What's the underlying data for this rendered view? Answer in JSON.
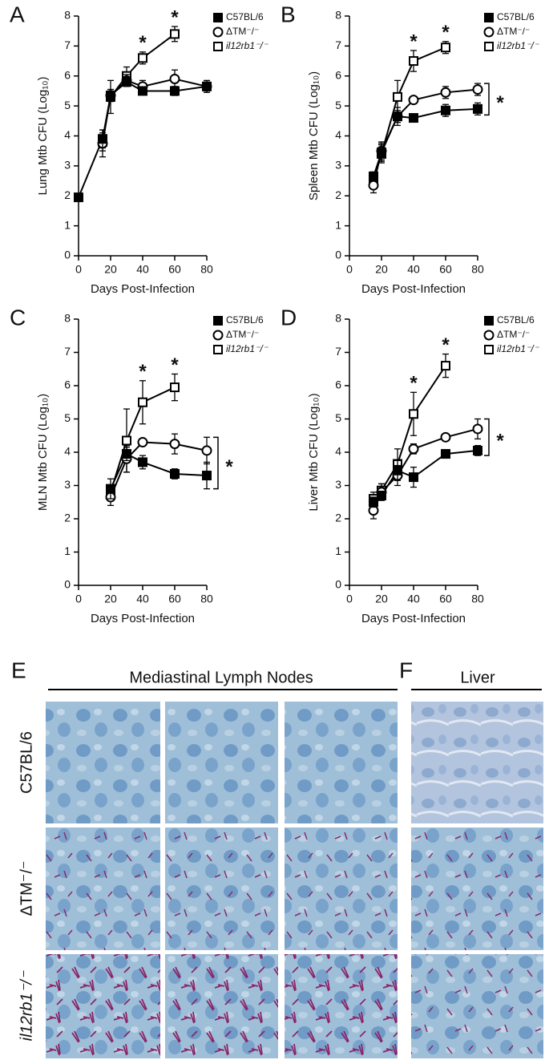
{
  "chart_data": [
    {
      "type": "line",
      "label": "A",
      "y_label": "Lung Mtb CFU (Log₁₀)",
      "x_label": "Days Post-Infection",
      "x": [
        0,
        15,
        20,
        30,
        40,
        60,
        80
      ],
      "xlim": [
        0,
        80
      ],
      "xticks": [
        0,
        20,
        40,
        60,
        80
      ],
      "ylim": [
        0,
        8
      ],
      "yticks": [
        0,
        1,
        2,
        3,
        4,
        5,
        6,
        7,
        8
      ],
      "legend": "upper right",
      "series": [
        {
          "name": "C57BL/6",
          "color": "#000000",
          "marker": "square",
          "filled": true,
          "italic": false,
          "values": [
            1.95,
            3.9,
            5.35,
            5.8,
            5.5,
            5.5,
            5.65
          ],
          "errors": [
            0.05,
            0.3,
            0.2,
            0.15,
            0.1,
            0.15,
            0.15
          ]
        },
        {
          "name": "ΔTM⁻/⁻",
          "color": "#000000",
          "marker": "circle",
          "filled": false,
          "italic": false,
          "values": [
            null,
            3.75,
            5.35,
            5.85,
            5.65,
            5.9,
            5.65
          ],
          "errors": [
            null,
            0.45,
            0.2,
            0.2,
            0.2,
            0.3,
            0.2
          ]
        },
        {
          "name": "il12rb1⁻/⁻",
          "color": "#000000",
          "marker": "square",
          "filled": false,
          "italic": true,
          "values": [
            null,
            3.8,
            5.3,
            6.0,
            6.6,
            7.4,
            null
          ],
          "errors": [
            null,
            0.3,
            0.55,
            0.3,
            0.2,
            0.25,
            null
          ]
        }
      ],
      "annotations": [
        {
          "text": "*",
          "x": 40
        },
        {
          "text": "*",
          "x": 60
        }
      ]
    },
    {
      "type": "line",
      "label": "B",
      "y_label": "Spleen Mtb CFU (Log₁₀)",
      "x_label": "Days Post-Infection",
      "x": [
        15,
        20,
        30,
        40,
        60,
        80
      ],
      "xlim": [
        0,
        80
      ],
      "xticks": [
        0,
        20,
        40,
        60,
        80
      ],
      "ylim": [
        0,
        8
      ],
      "yticks": [
        0,
        1,
        2,
        3,
        4,
        5,
        6,
        7,
        8
      ],
      "legend": "upper right",
      "series": [
        {
          "name": "C57BL/6",
          "color": "#000000",
          "marker": "square",
          "filled": true,
          "italic": false,
          "values": [
            2.65,
            3.45,
            4.65,
            4.6,
            4.85,
            4.9
          ],
          "errors": [
            0.15,
            0.3,
            0.2,
            0.1,
            0.2,
            0.2
          ]
        },
        {
          "name": "ΔTM⁻/⁻",
          "color": "#000000",
          "marker": "circle",
          "filled": false,
          "italic": false,
          "values": [
            2.35,
            3.5,
            4.65,
            5.2,
            5.45,
            5.55
          ],
          "errors": [
            0.25,
            0.3,
            0.3,
            0.1,
            0.2,
            0.2
          ]
        },
        {
          "name": "il12rb1⁻/⁻",
          "color": "#000000",
          "marker": "square",
          "filled": false,
          "italic": true,
          "values": [
            2.55,
            3.4,
            5.3,
            6.5,
            6.95,
            null
          ],
          "errors": [
            0.2,
            0.3,
            0.55,
            0.35,
            0.2,
            null
          ]
        }
      ],
      "annotations": [
        {
          "text": "*",
          "x": 40
        },
        {
          "text": "*",
          "x": 60
        },
        {
          "text": "*",
          "type": "bracket"
        }
      ]
    },
    {
      "type": "line",
      "label": "C",
      "y_label": "MLN Mtb CFU (Log₁₀)",
      "x_label": "Days Post-Infection",
      "x": [
        20,
        30,
        40,
        60,
        80
      ],
      "xlim": [
        0,
        80
      ],
      "xticks": [
        0,
        20,
        40,
        60,
        80
      ],
      "ylim": [
        0,
        8
      ],
      "yticks": [
        0,
        1,
        2,
        3,
        4,
        5,
        6,
        7,
        8
      ],
      "legend": "upper right",
      "series": [
        {
          "name": "C57BL/6",
          "color": "#000000",
          "marker": "square",
          "filled": true,
          "italic": false,
          "values": [
            2.9,
            3.95,
            3.7,
            3.35,
            3.3
          ],
          "errors": [
            0.3,
            0.2,
            0.2,
            0.15,
            0.4
          ]
        },
        {
          "name": "ΔTM⁻/⁻",
          "color": "#000000",
          "marker": "circle",
          "filled": false,
          "italic": false,
          "values": [
            2.65,
            3.8,
            4.3,
            4.25,
            4.05
          ],
          "errors": [
            0.25,
            0.4,
            0.1,
            0.3,
            0.4
          ]
        },
        {
          "name": "il12rb1⁻/⁻",
          "color": "#000000",
          "marker": "square",
          "filled": false,
          "italic": true,
          "values": [
            2.8,
            4.35,
            5.5,
            5.95,
            null
          ],
          "errors": [
            0.2,
            0.95,
            0.65,
            0.4,
            null
          ]
        }
      ],
      "annotations": [
        {
          "text": "*",
          "x": 40
        },
        {
          "text": "*",
          "x": 60
        },
        {
          "text": "*",
          "type": "bracket"
        }
      ]
    },
    {
      "type": "line",
      "label": "D",
      "y_label": "Liver Mtb CFU (Log₁₀)",
      "x_label": "Days Post-Infection",
      "x": [
        15,
        20,
        30,
        40,
        60,
        80
      ],
      "xlim": [
        0,
        80
      ],
      "xticks": [
        0,
        20,
        40,
        60,
        80
      ],
      "ylim": [
        0,
        8
      ],
      "yticks": [
        0,
        1,
        2,
        3,
        4,
        5,
        6,
        7,
        8
      ],
      "legend": "upper right",
      "series": [
        {
          "name": "C57BL/6",
          "color": "#000000",
          "marker": "square",
          "filled": true,
          "italic": false,
          "values": [
            2.5,
            2.7,
            3.45,
            3.25,
            3.95,
            4.05
          ],
          "errors": [
            0.15,
            0.1,
            0.3,
            0.3,
            0.1,
            0.15
          ]
        },
        {
          "name": "ΔTM⁻/⁻",
          "color": "#000000",
          "marker": "circle",
          "filled": false,
          "italic": false,
          "values": [
            2.25,
            2.8,
            3.3,
            4.1,
            4.45,
            4.7
          ],
          "errors": [
            0.25,
            0.25,
            0.3,
            0.15,
            0.1,
            0.3
          ]
        },
        {
          "name": "il12rb1⁻/⁻",
          "color": "#000000",
          "marker": "square",
          "filled": false,
          "italic": true,
          "values": [
            2.6,
            2.85,
            3.65,
            5.15,
            6.6,
            null
          ],
          "errors": [
            0.2,
            0.2,
            0.45,
            0.65,
            0.35,
            null
          ]
        }
      ],
      "annotations": [
        {
          "text": "*",
          "x": 40
        },
        {
          "text": "*",
          "x": 60
        },
        {
          "text": "*",
          "type": "bracket"
        }
      ]
    }
  ],
  "micrographs": {
    "panel_e": "E",
    "panel_f": "F",
    "title_e": "Mediastinal Lymph Nodes",
    "title_f": "Liver",
    "rows": [
      "C57BL/6",
      "ΔTM⁻/⁻",
      "il12rb1⁻/⁻"
    ]
  }
}
